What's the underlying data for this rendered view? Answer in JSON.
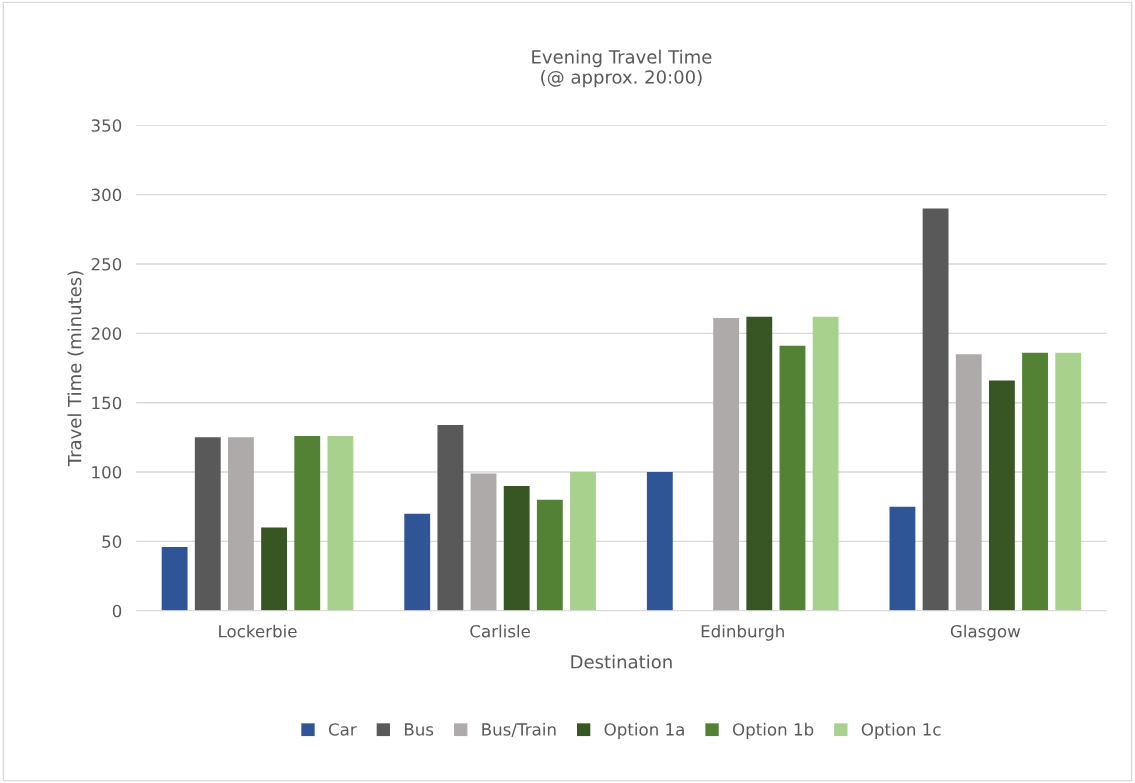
{
  "chart_data": {
    "type": "bar",
    "title": "Evening Travel Time\n(@ approx. 20:00)",
    "xlabel": "Destination",
    "ylabel": "Travel Time (minutes)",
    "categories": [
      "Lockerbie",
      "Carlisle",
      "Edinburgh",
      "Glasgow"
    ],
    "series": [
      {
        "name": "Car",
        "color": "#2f5597",
        "values": [
          46,
          70,
          100,
          75
        ]
      },
      {
        "name": "Bus",
        "color": "#595959",
        "values": [
          125,
          134,
          null,
          290
        ]
      },
      {
        "name": "Bus/Train",
        "color": "#aeaaaa",
        "values": [
          125,
          99,
          211,
          185
        ]
      },
      {
        "name": "Option 1a",
        "color": "#375623",
        "values": [
          60,
          90,
          212,
          166
        ]
      },
      {
        "name": "Option 1b",
        "color": "#548235",
        "values": [
          126,
          80,
          191,
          186
        ]
      },
      {
        "name": "Option 1c",
        "color": "#a9d18e",
        "values": [
          126,
          100,
          212,
          186
        ]
      }
    ],
    "ylim": [
      0,
      350
    ],
    "yticks": [
      0,
      50,
      100,
      150,
      200,
      250,
      300,
      350
    ],
    "grid": "y",
    "legend": "bottom"
  }
}
